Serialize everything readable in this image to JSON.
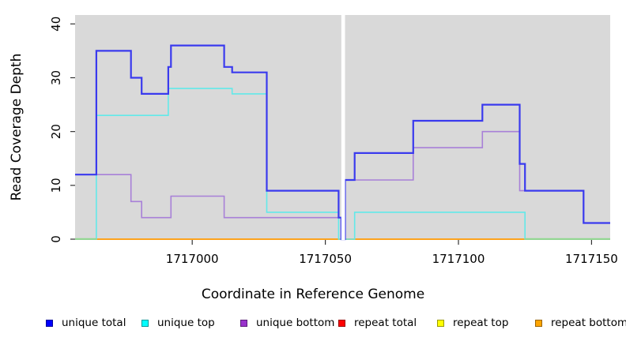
{
  "chart_data": {
    "type": "line",
    "subtype": "step-coverage",
    "title": "",
    "xlabel": "Coordinate in Reference Genome",
    "ylabel": "Read Coverage Depth",
    "xlim": [
      1716956,
      1717157
    ],
    "ylim": [
      0,
      40
    ],
    "grid": false,
    "legend_position": "bottom",
    "plot_bg_color": "#d9d9d9",
    "tick_color": "#333333",
    "x_ticks": [
      {
        "value": 1717000,
        "label": "1717000"
      },
      {
        "value": 1717050,
        "label": "1717050"
      },
      {
        "value": 1717100,
        "label": "1717100"
      },
      {
        "value": 1717150,
        "label": "1717150"
      }
    ],
    "y_ticks": [
      {
        "value": 0,
        "label": "0"
      },
      {
        "value": 10,
        "label": "10"
      },
      {
        "value": 20,
        "label": "20"
      },
      {
        "value": 30,
        "label": "30"
      },
      {
        "value": 40,
        "label": "40"
      }
    ],
    "gap_band": {
      "from": 1717056,
      "to": 1717057.4,
      "color": "#ffffff"
    },
    "series": [
      {
        "name": "repeat total",
        "line_color": "#ee2222",
        "width": 1.5,
        "points": [
          [
            1716956,
            0
          ],
          [
            1717157,
            0
          ]
        ]
      },
      {
        "name": "repeat top",
        "line_color": "#f5f54a",
        "width": 1.5,
        "points": [
          [
            1716956,
            0
          ],
          [
            1717157,
            0
          ]
        ]
      },
      {
        "name": "repeat bottom",
        "line_color": "#ffa014",
        "width": 1.8,
        "points": [
          [
            1716956,
            0
          ],
          [
            1717157,
            0
          ]
        ]
      },
      {
        "name": "unique bottom",
        "line_color": "#a880d8",
        "width": 1.6,
        "points": [
          [
            1716956,
            12
          ],
          [
            1716977,
            7
          ],
          [
            1716981,
            4
          ],
          [
            1716992,
            8
          ],
          [
            1717012,
            4
          ],
          [
            1717056,
            0
          ],
          [
            1717057.4,
            11
          ],
          [
            1717083,
            17
          ],
          [
            1717109,
            20
          ],
          [
            1717123,
            9
          ],
          [
            1717147,
            3
          ],
          [
            1717157,
            3
          ]
        ]
      },
      {
        "name": "unique top",
        "line_color": "#62e9e9",
        "width": 1.6,
        "points": [
          [
            1716956,
            0
          ],
          [
            1716964,
            23
          ],
          [
            1716991,
            28
          ],
          [
            1717015,
            27
          ],
          [
            1717028,
            5
          ],
          [
            1717055,
            0
          ],
          [
            1717061,
            5
          ],
          [
            1717125,
            0
          ],
          [
            1717157,
            0
          ]
        ]
      },
      {
        "name": "unique total",
        "line_color": "#3a3aee",
        "width": 2.2,
        "points": [
          [
            1716956,
            12
          ],
          [
            1716964,
            35
          ],
          [
            1716977,
            30
          ],
          [
            1716981,
            27
          ],
          [
            1716991,
            32
          ],
          [
            1716992,
            36
          ],
          [
            1717012,
            32
          ],
          [
            1717015,
            31
          ],
          [
            1717028,
            9
          ],
          [
            1717055,
            4
          ],
          [
            1717056,
            0
          ],
          [
            1717057.4,
            11
          ],
          [
            1717061,
            16
          ],
          [
            1717083,
            22
          ],
          [
            1717109,
            25
          ],
          [
            1717123,
            14
          ],
          [
            1717125,
            9
          ],
          [
            1717147,
            3
          ],
          [
            1717157,
            3
          ]
        ]
      }
    ],
    "overlap_zero_segments": {
      "color": "#8fd98f",
      "ranges": [
        [
          1716956,
          1716964
        ],
        [
          1717125,
          1717157
        ]
      ]
    },
    "legend": [
      {
        "label": "unique total",
        "color": "#0000ff"
      },
      {
        "label": "unique top",
        "color": "#00ffff"
      },
      {
        "label": "unique bottom",
        "color": "#9932cc"
      },
      {
        "label": "repeat total",
        "color": "#ff0000"
      },
      {
        "label": "repeat top",
        "color": "#ffff00"
      },
      {
        "label": "repeat bottom",
        "color": "#ffa500"
      }
    ]
  }
}
